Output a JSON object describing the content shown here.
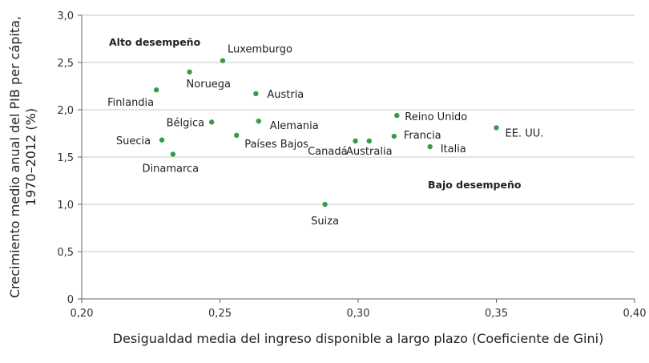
{
  "chart_data": {
    "type": "scatter",
    "title": "",
    "xlabel": "Desigualdad media del ingreso disponible a largo plazo (Coeficiente de Gini)",
    "ylabel_lines": [
      "Crecimiento medio anual del PIB per cápita,",
      "1970–2012 (%)"
    ],
    "xlim": [
      0.2,
      0.4
    ],
    "ylim": [
      0,
      3.0
    ],
    "x_ticks": [
      "0,20",
      "0,25",
      "0,30",
      "0,35",
      "0,40"
    ],
    "y_ticks": [
      "0",
      "0,5",
      "1,0",
      "1,5",
      "2,0",
      "2,5",
      "3,0"
    ],
    "grid": "horizontal",
    "point_color": "#3a9a4a",
    "annotations": [
      "Alto desempeño",
      "Bajo desempeño"
    ],
    "points": [
      {
        "label": "Luxemburgo",
        "x": 0.251,
        "y": 2.52
      },
      {
        "label": "Noruega",
        "x": 0.239,
        "y": 2.4
      },
      {
        "label": "Finlandia",
        "x": 0.227,
        "y": 2.21
      },
      {
        "label": "Austria",
        "x": 0.263,
        "y": 2.17
      },
      {
        "label": "Bélgica",
        "x": 0.247,
        "y": 1.87
      },
      {
        "label": "Alemania",
        "x": 0.264,
        "y": 1.88
      },
      {
        "label": "Países Bajos",
        "x": 0.256,
        "y": 1.73
      },
      {
        "label": "Suecia",
        "x": 0.229,
        "y": 1.68
      },
      {
        "label": "Dinamarca",
        "x": 0.233,
        "y": 1.53
      },
      {
        "label": "Suiza",
        "x": 0.288,
        "y": 1.0
      },
      {
        "label": "Canadá",
        "x": 0.299,
        "y": 1.67
      },
      {
        "label": "Australia",
        "x": 0.304,
        "y": 1.67
      },
      {
        "label": "Reino Unido",
        "x": 0.314,
        "y": 1.94
      },
      {
        "label": "Francia",
        "x": 0.313,
        "y": 1.72
      },
      {
        "label": "Italia",
        "x": 0.326,
        "y": 1.61
      },
      {
        "label": "EE. UU.",
        "x": 0.35,
        "y": 1.81
      }
    ]
  }
}
